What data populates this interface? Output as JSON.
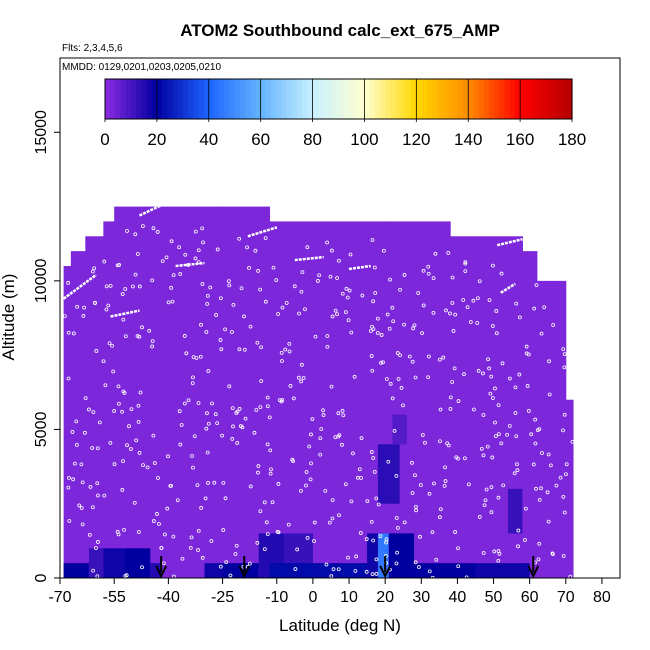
{
  "chart_data": {
    "type": "heatmap",
    "title": "ATOM2 Southbound calc_ext_675_AMP",
    "subtitle": "Flts: 2,3,4,5,6",
    "annotation": "MMDD: 0129,0201,0203,0205,0210",
    "xlabel": "Latitude (deg N)",
    "ylabel": "Altitude (m)",
    "xlim": [
      -70,
      85
    ],
    "ylim": [
      0,
      17500
    ],
    "x_ticks": [
      -70,
      -55,
      -40,
      -25,
      -10,
      0,
      10,
      20,
      30,
      40,
      50,
      60,
      70,
      80
    ],
    "x_tick_labels": [
      "-70",
      "-55",
      "-40",
      "-25",
      "-10",
      "0",
      "10",
      "20",
      "30",
      "40",
      "50",
      "60",
      "70",
      "80"
    ],
    "y_ticks": [
      0,
      5000,
      10000,
      15000
    ],
    "y_tick_labels": [
      "0",
      "5000",
      "10000",
      "15000"
    ],
    "colorbar": {
      "range": [
        0,
        180
      ],
      "ticks": [
        0,
        20,
        40,
        60,
        80,
        100,
        120,
        140,
        160,
        180
      ],
      "tick_labels": [
        "0",
        "20",
        "40",
        "60",
        "80",
        "100",
        "120",
        "140",
        "160",
        "180"
      ],
      "colors": [
        "#8b2be2",
        "#0000a0",
        "#1e64ff",
        "#64b4ff",
        "#c8f0ff",
        "#ffffd0",
        "#ffd700",
        "#ff8c00",
        "#ff0000",
        "#b40000"
      ]
    },
    "background_value": 2,
    "coverage_columns": [
      {
        "x0": -69,
        "x1": -67,
        "top": 10500
      },
      {
        "x0": -67,
        "x1": -63,
        "top": 11000
      },
      {
        "x0": -63,
        "x1": -58,
        "top": 11500
      },
      {
        "x0": -58,
        "x1": -55,
        "top": 12000
      },
      {
        "x0": -55,
        "x1": -45,
        "top": 12500
      },
      {
        "x0": -45,
        "x1": -25,
        "top": 12500
      },
      {
        "x0": -25,
        "x1": -12,
        "top": 12500
      },
      {
        "x0": -12,
        "x1": 20,
        "top": 12000
      },
      {
        "x0": 20,
        "x1": 38,
        "top": 12000
      },
      {
        "x0": 38,
        "x1": 58,
        "top": 11500
      },
      {
        "x0": 58,
        "x1": 62,
        "top": 11000
      },
      {
        "x0": 62,
        "x1": 70,
        "top": 10000
      },
      {
        "x0": 70,
        "x1": 72,
        "top": 6000
      }
    ],
    "cells": [
      {
        "x0": -69,
        "x1": -62,
        "y0": 0,
        "y1": 500,
        "v": 20
      },
      {
        "x0": -62,
        "x1": -58,
        "y0": 0,
        "y1": 1000,
        "v": 12
      },
      {
        "x0": -58,
        "x1": -52,
        "y0": 0,
        "y1": 1000,
        "v": 18
      },
      {
        "x0": -52,
        "x1": -45,
        "y0": 0,
        "y1": 1000,
        "v": 20
      },
      {
        "x0": -45,
        "x1": -42,
        "y0": 0,
        "y1": 500,
        "v": 15
      },
      {
        "x0": -30,
        "x1": -25,
        "y0": 0,
        "y1": 500,
        "v": 18
      },
      {
        "x0": -25,
        "x1": -15,
        "y0": 0,
        "y1": 500,
        "v": 20
      },
      {
        "x0": -15,
        "x1": -8,
        "y0": 0,
        "y1": 1500,
        "v": 15
      },
      {
        "x0": -8,
        "x1": 0,
        "y0": 0,
        "y1": 1500,
        "v": 12
      },
      {
        "x0": -12,
        "x1": 0,
        "y0": 0,
        "y1": 500,
        "v": 22
      },
      {
        "x0": 0,
        "x1": 15,
        "y0": 0,
        "y1": 500,
        "v": 22
      },
      {
        "x0": 15,
        "x1": 18,
        "y0": 0,
        "y1": 1500,
        "v": 18
      },
      {
        "x0": 18,
        "x1": 21,
        "y0": 0,
        "y1": 1500,
        "v": 45
      },
      {
        "x0": 21,
        "x1": 28,
        "y0": 0,
        "y1": 1500,
        "v": 20
      },
      {
        "x0": 28,
        "x1": 45,
        "y0": 0,
        "y1": 500,
        "v": 20
      },
      {
        "x0": 45,
        "x1": 60,
        "y0": 0,
        "y1": 500,
        "v": 18
      },
      {
        "x0": 18,
        "x1": 24,
        "y0": 2500,
        "y1": 4500,
        "v": 14
      },
      {
        "x0": 22,
        "x1": 26,
        "y0": 4500,
        "y1": 5500,
        "v": 8
      },
      {
        "x0": 54,
        "x1": 58,
        "y0": 1500,
        "y1": 3000,
        "v": 12
      }
    ],
    "flight_lines": [
      {
        "x": [
          -69,
          -60
        ],
        "y": [
          9400,
          10200
        ]
      },
      {
        "x": [
          -56,
          -48
        ],
        "y": [
          8800,
          9000
        ]
      },
      {
        "x": [
          -48,
          -41
        ],
        "y": [
          12200,
          12600
        ]
      },
      {
        "x": [
          -38,
          -30
        ],
        "y": [
          10500,
          10600
        ]
      },
      {
        "x": [
          -18,
          -10
        ],
        "y": [
          11500,
          11800
        ]
      },
      {
        "x": [
          -5,
          3
        ],
        "y": [
          10700,
          10800
        ]
      },
      {
        "x": [
          10,
          16
        ],
        "y": [
          10400,
          10500
        ]
      },
      {
        "x": [
          51,
          58
        ],
        "y": [
          11200,
          11400
        ]
      },
      {
        "x": [
          52,
          56
        ],
        "y": [
          9600,
          9900
        ]
      }
    ],
    "arrows": [
      -42,
      -19,
      20,
      61
    ]
  }
}
